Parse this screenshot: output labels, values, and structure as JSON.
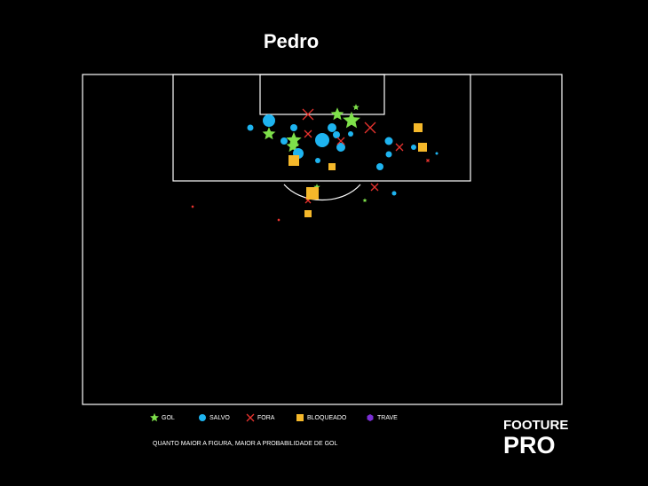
{
  "chart_data": {
    "type": "scatter",
    "title": "Pedro",
    "note": "QUANTO MAIOR A FIGURA, MAIOR A PROBABILIDADE DE GOL",
    "brand": [
      "FOOTURE",
      "PRO"
    ],
    "xlim": [
      0,
      540
    ],
    "ylim": [
      372,
      0
    ],
    "series": [
      {
        "name": "GOL",
        "color": "#7ee04a",
        "marker": "star",
        "x": [
          308,
          287,
          303,
          210,
          238,
          237,
          264,
          318
        ],
        "values": [
          37,
          45,
          52,
          67,
          74,
          81,
          127,
          142
        ],
        "sizes": [
          3,
          6,
          8,
          6,
          7,
          6,
          3,
          2
        ]
      },
      {
        "name": "SALVO",
        "color": "#1eb4f0",
        "marker": "circle",
        "x": [
          210,
          189,
          238,
          281,
          286,
          302,
          270,
          227,
          291,
          243,
          265,
          345,
          345,
          373,
          399,
          335,
          351
        ],
        "values": [
          52,
          60,
          60,
          60,
          68,
          67,
          74,
          75,
          82,
          89,
          97,
          75,
          90,
          82,
          89,
          104,
          134
        ],
        "sizes": [
          7,
          3.5,
          4,
          5,
          4,
          3,
          8,
          4,
          5,
          6,
          3,
          4.5,
          3.5,
          3,
          1.5,
          4,
          2.5
        ]
      },
      {
        "name": "FORA",
        "color": "#e8332e",
        "marker": "x",
        "x": [
          254,
          254,
          324,
          291,
          357,
          389,
          329,
          254,
          221,
          124
        ],
        "values": [
          45,
          67,
          60,
          75,
          82,
          97,
          127,
          142,
          164,
          149
        ],
        "sizes": [
          6,
          4,
          6,
          4,
          4,
          1.5,
          4,
          3,
          1,
          1
        ]
      },
      {
        "name": "BLOQUEADO",
        "color": "#f5b82a",
        "marker": "square",
        "x": [
          378,
          383,
          238,
          281,
          259,
          254
        ],
        "values": [
          60,
          82,
          97,
          104,
          134,
          157
        ],
        "sizes": [
          5,
          5,
          6,
          4,
          7,
          4
        ]
      },
      {
        "name": "TRAVE",
        "color": "#7b2fd6",
        "marker": "hexagon",
        "x": [],
        "values": [],
        "sizes": []
      }
    ]
  }
}
